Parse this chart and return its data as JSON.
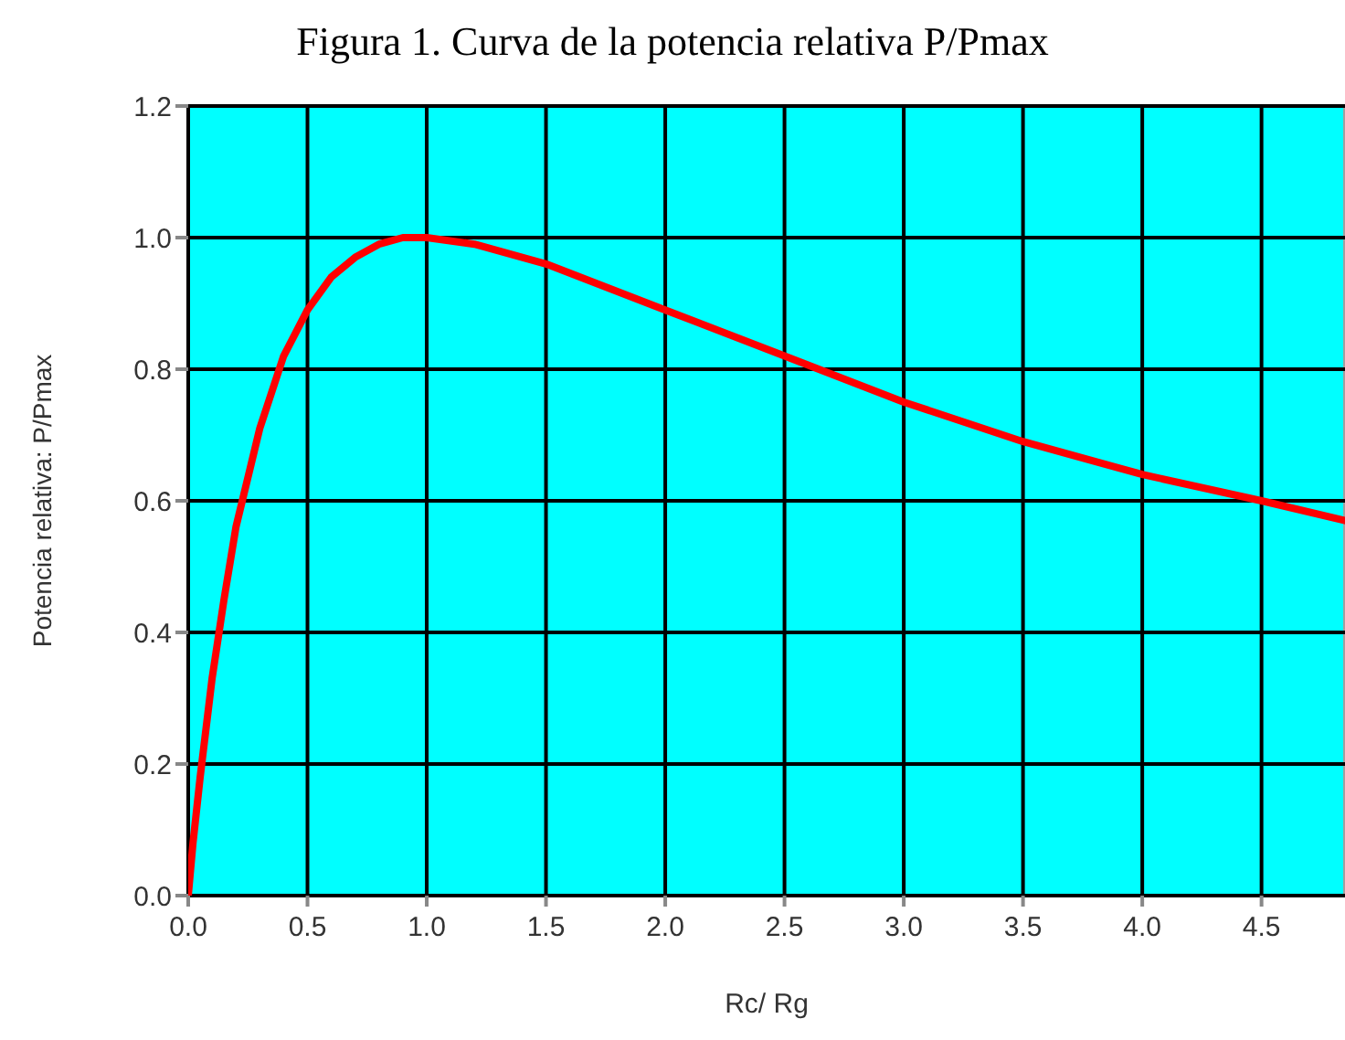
{
  "chart_data": {
    "type": "line",
    "title": "Figura 1. Curva de la potencia relativa P/Pmax",
    "xlabel": "Rc/ Rg",
    "ylabel": "Potencia relativa: P/Pmax",
    "x": [
      0,
      0.02,
      0.05,
      0.1,
      0.15,
      0.2,
      0.3,
      0.4,
      0.5,
      0.6,
      0.7,
      0.8,
      0.9,
      1.0,
      1.2,
      1.5,
      2.0,
      2.5,
      3.0,
      3.5,
      4.0,
      4.5,
      4.85
    ],
    "series": [
      {
        "color": "#ff0000",
        "values": [
          0,
          0.08,
          0.18,
          0.33,
          0.45,
          0.56,
          0.71,
          0.82,
          0.89,
          0.94,
          0.97,
          0.99,
          1.0,
          1.0,
          0.99,
          0.96,
          0.89,
          0.82,
          0.75,
          0.69,
          0.64,
          0.6,
          0.57
        ]
      }
    ],
    "xlim": [
      0,
      4.85
    ],
    "xticks": [
      {
        "value": 0,
        "label": "0.0"
      },
      0.5,
      {
        "value": 1,
        "label": "1.0"
      },
      1.5,
      {
        "value": 2,
        "label": "2.0"
      },
      2.5,
      {
        "value": 3,
        "label": "3.0"
      },
      3.5,
      {
        "value": 4,
        "label": "4.0"
      },
      4.5
    ],
    "ylim": [
      0,
      1.2
    ],
    "yticks": [
      {
        "value": 0,
        "label": "0.0"
      },
      0.2,
      0.4,
      0.6,
      0.8,
      {
        "value": 1,
        "label": "1.0"
      },
      1.2
    ],
    "grid": true,
    "marker": "none",
    "line_style": "solid"
  }
}
